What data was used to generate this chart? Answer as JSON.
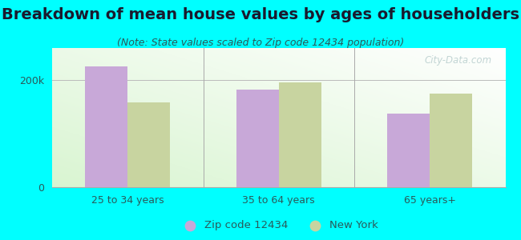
{
  "title": "Breakdown of mean house values by ages of householders",
  "subtitle": "(Note: State values scaled to Zip code 12434 population)",
  "categories": [
    "25 to 34 years",
    "35 to 64 years",
    "65 years+"
  ],
  "zip_values": [
    225000,
    182000,
    137000
  ],
  "ny_values": [
    158000,
    196000,
    175000
  ],
  "zip_color": "#c8a8d8",
  "ny_color": "#c8d4a0",
  "background_color": "#00ffff",
  "ylim": [
    0,
    260000
  ],
  "yticks": [
    0,
    200000
  ],
  "ytick_labels": [
    "0",
    "200k"
  ],
  "legend_zip": "Zip code 12434",
  "legend_ny": "New York",
  "bar_width": 0.28,
  "watermark": "City-Data.com",
  "title_fontsize": 14,
  "subtitle_fontsize": 9,
  "tick_fontsize": 9,
  "title_color": "#1a1a2e",
  "subtitle_color": "#2a5a5a",
  "tick_color": "#2a5a5a"
}
